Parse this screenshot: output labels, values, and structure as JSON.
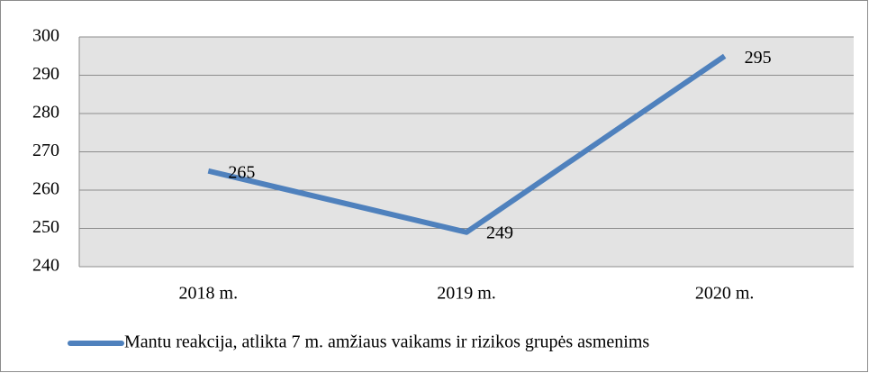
{
  "chart_data": {
    "type": "line",
    "categories": [
      "2018 m.",
      "2019 m.",
      "2020 m."
    ],
    "series": [
      {
        "name": "Mantu reakcija, atlikta 7 m. amžiaus vaikams ir rizikos grupės asmenims",
        "color": "#4f81bd",
        "values": [
          265,
          249,
          295
        ]
      }
    ],
    "ylim": [
      240,
      300
    ],
    "yticks": [
      240,
      250,
      260,
      270,
      280,
      290,
      300
    ],
    "grid": true,
    "legend": "bottom"
  }
}
